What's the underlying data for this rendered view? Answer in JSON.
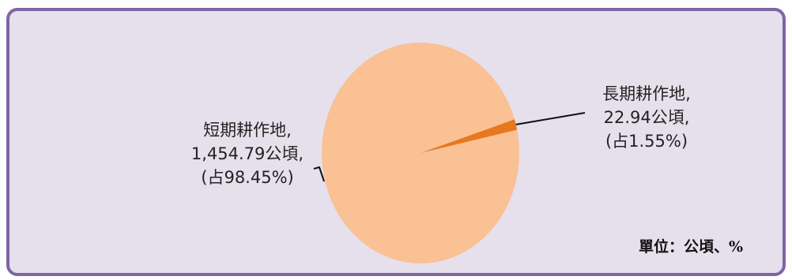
{
  "chart_data": {
    "type": "pie",
    "title": "",
    "unit_note": "單位：公頃、%",
    "categories": [
      "短期耕作地",
      "長期耕作地"
    ],
    "values": [
      1454.79,
      22.94
    ],
    "percents": [
      98.45,
      1.55
    ],
    "colors": [
      "#f9c194",
      "#e8781d"
    ],
    "value_texts": [
      "1,454.79公頃,",
      "22.94公頃,"
    ],
    "percent_texts": [
      "(占98.45%)",
      "(占1.55%)"
    ],
    "name_texts": [
      "短期耕作地,",
      "長期耕作地,"
    ],
    "legend": "none"
  }
}
